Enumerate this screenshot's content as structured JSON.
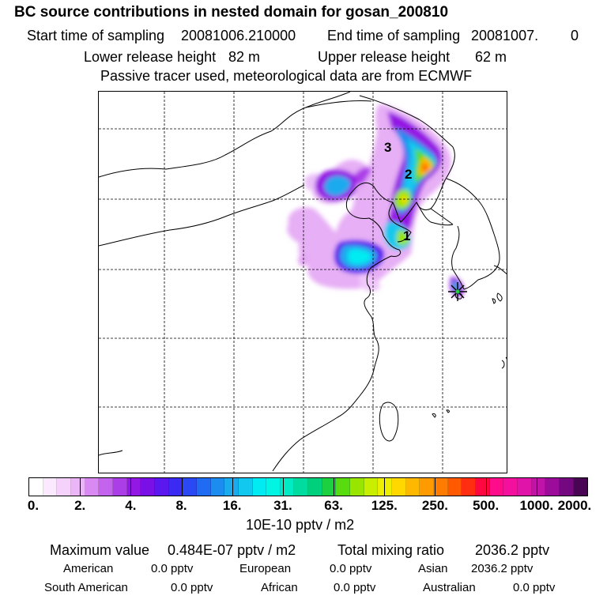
{
  "header": {
    "title": "BC  source contributions in nested domain for gosan_200810",
    "start_label": "Start time of sampling",
    "start_value": "20081006.210000",
    "end_label": "End time of sampling",
    "end_value": "20081007.",
    "end_extra": "0",
    "lower_label": "Lower release height",
    "lower_value": "82 m",
    "upper_label": "Upper release height",
    "upper_value": "62 m",
    "note": "Passive tracer used, meteorological data are from ECMWF"
  },
  "map": {
    "point_labels": [
      "1",
      "2",
      "3"
    ],
    "receptor_icon": "asterisk-receptor-marker"
  },
  "colorbar": {
    "ticks": [
      "0.",
      "2.",
      "4.",
      "8.",
      "16.",
      "31.",
      "63.",
      "125.",
      "250.",
      "500.",
      "1000.",
      "2000."
    ],
    "unit": "10E-10 pptv / m2",
    "colors": [
      "#ffffff",
      "#fbe9ff",
      "#f4d2fc",
      "#ebb6f8",
      "#d98af2",
      "#c464ee",
      "#ac3ee8",
      "#9418e4",
      "#7a10e6",
      "#5a18ee",
      "#3a2af2",
      "#2a48f4",
      "#1f6cf2",
      "#1c8cf0",
      "#1aaaee",
      "#12c8ee",
      "#00ecf2",
      "#00f6e2",
      "#00eac4",
      "#00dca0",
      "#00d07c",
      "#1cd040",
      "#58dc10",
      "#98e600",
      "#c8ee00",
      "#ecf000",
      "#ffd800",
      "#ffb800",
      "#ff9a00",
      "#ff7c00",
      "#ff5a00",
      "#ff2e10",
      "#ff0840",
      "#ff0c8a",
      "#f4109e",
      "#e014a8",
      "#c014a8",
      "#9c0c9a",
      "#740880",
      "#4a0454"
    ]
  },
  "summary": {
    "max_label": "Maximum value",
    "max_value": "0.484E-07 pptv / m2",
    "total_label": "Total mixing ratio",
    "total_value": "2036.2 pptv"
  },
  "regions": [
    {
      "name": "American",
      "value": "0.0 pptv"
    },
    {
      "name": "European",
      "value": "0.0 pptv"
    },
    {
      "name": "Asian",
      "value": "2036.2 pptv"
    },
    {
      "name": "South American",
      "value": "0.0 pptv"
    },
    {
      "name": "African",
      "value": "0.0 pptv"
    },
    {
      "name": "Australian",
      "value": "0.0 pptv"
    }
  ]
}
